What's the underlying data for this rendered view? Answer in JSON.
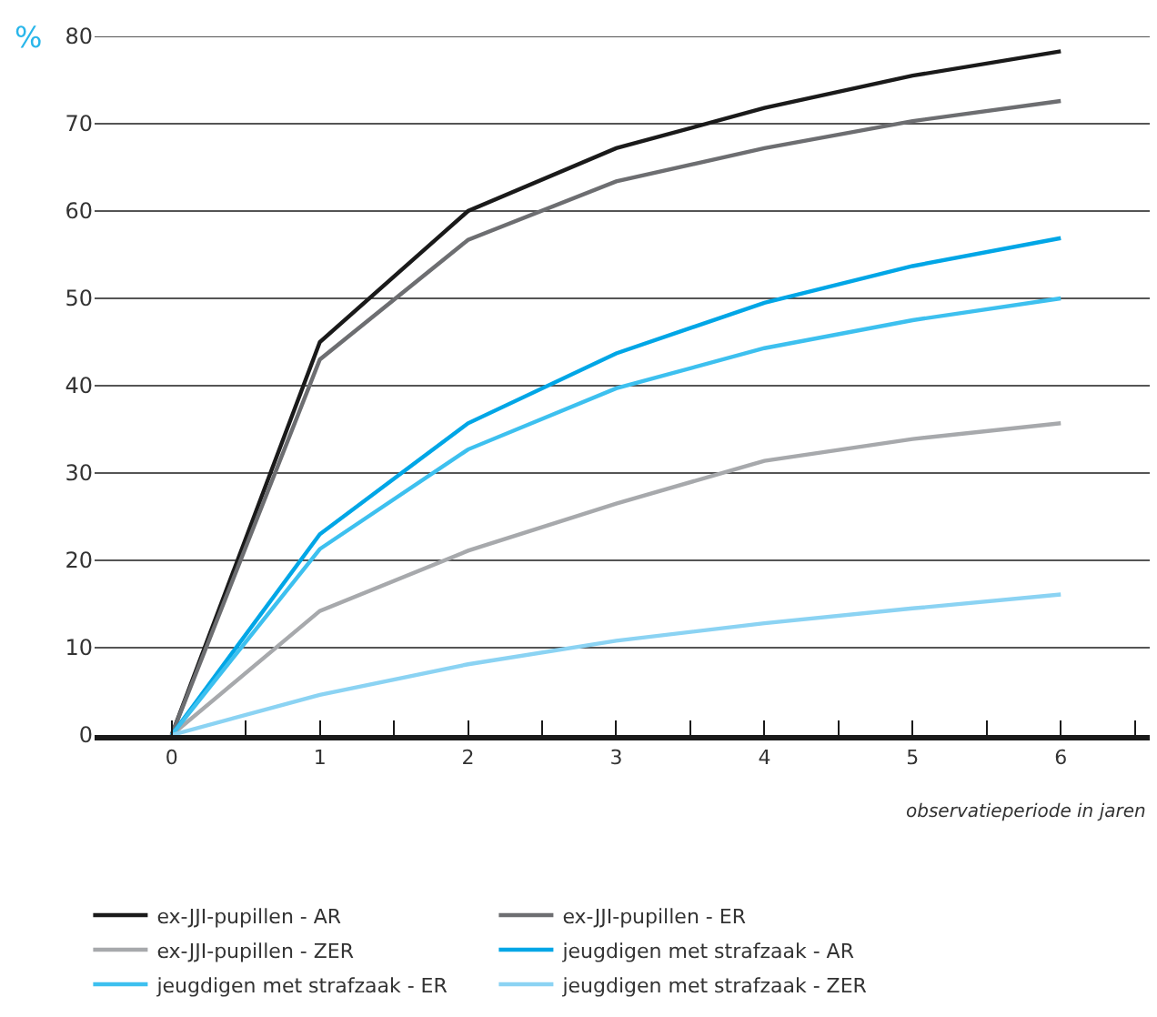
{
  "chart_data": {
    "type": "line",
    "xlabel": "observatieperiode in jaren",
    "ylabel": "%",
    "x": [
      0,
      1,
      2,
      3,
      4,
      5,
      6
    ],
    "xlim": [
      -0.52,
      6.6
    ],
    "xticks": [
      0,
      {
        "value": 0.5,
        "label": null
      },
      1,
      {
        "value": 1.5,
        "label": null
      },
      2,
      {
        "value": 2.5,
        "label": null
      },
      3,
      {
        "value": 3.5,
        "label": null
      },
      4,
      {
        "value": 4.5,
        "label": null
      },
      5,
      {
        "value": 5.5,
        "label": null
      },
      6,
      {
        "value": 6.5,
        "label": null
      }
    ],
    "ylim": [
      0,
      80
    ],
    "yticks": [
      0,
      10,
      20,
      30,
      40,
      50,
      60,
      70,
      80
    ],
    "grid": "y",
    "legend": "bottom",
    "marker": "none",
    "line_style": "solid",
    "series": [
      {
        "name": "ex-JJI-pupillen - AR",
        "color": "#1a1a1a",
        "values": [
          0,
          45,
          60,
          67.2,
          71.8,
          75.5,
          78.3
        ]
      },
      {
        "name": "ex-JJI-pupillen - ER",
        "color": "#6d6e71",
        "values": [
          0,
          43,
          56.7,
          63.4,
          67.2,
          70.3,
          72.6
        ]
      },
      {
        "name": "ex-JJI-pupillen - ZER",
        "color": "#a7a9ac",
        "values": [
          0,
          14.2,
          21.1,
          26.5,
          31.4,
          33.9,
          35.7
        ]
      },
      {
        "name": "jeugdigen met strafzaak - AR",
        "color": "#00a6e6",
        "values": [
          0,
          23,
          35.7,
          43.7,
          49.5,
          53.7,
          56.9
        ]
      },
      {
        "name": "jeugdigen met strafzaak - ER",
        "color": "#3dc0ef",
        "values": [
          0,
          21.3,
          32.7,
          39.7,
          44.3,
          47.5,
          50
        ]
      },
      {
        "name": "jeugdigen met strafzaak - ZER",
        "color": "#8bd3f3",
        "values": [
          0,
          4.6,
          8.1,
          10.8,
          12.8,
          14.5,
          16.1
        ]
      }
    ]
  }
}
